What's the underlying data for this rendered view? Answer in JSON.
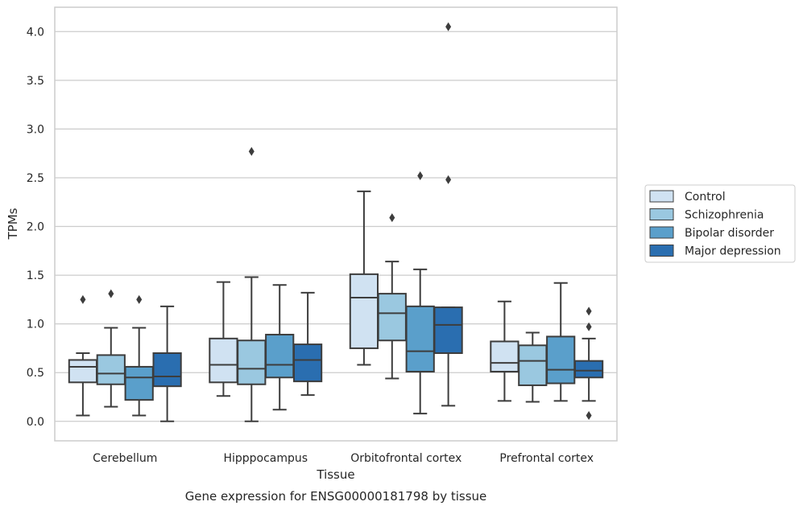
{
  "chart_data": {
    "type": "box",
    "title": "",
    "caption": "Gene expression for ENSG00000181798 by tissue",
    "xlabel": "Tissue",
    "ylabel": "TPMs",
    "ylim": [
      -0.2,
      4.25
    ],
    "yticks": [
      "0.0",
      "0.5",
      "1.0",
      "1.5",
      "2.0",
      "2.5",
      "3.0",
      "3.5",
      "4.0"
    ],
    "grid": "horizontal",
    "legend_position": "right",
    "categories": [
      "Cerebellum",
      "Hipppocampus",
      "Orbitofrontal cortex",
      "Prefrontal cortex"
    ],
    "series": [
      {
        "name": "Control",
        "color": "#d0e2f2",
        "boxes": [
          {
            "whislo": 0.06,
            "q1": 0.4,
            "med": 0.56,
            "q3": 0.63,
            "whishi": 0.7,
            "fliers": [
              1.25
            ]
          },
          {
            "whislo": 0.26,
            "q1": 0.4,
            "med": 0.58,
            "q3": 0.85,
            "whishi": 1.43,
            "fliers": []
          },
          {
            "whislo": 0.58,
            "q1": 0.75,
            "med": 1.27,
            "q3": 1.51,
            "whishi": 2.36,
            "fliers": []
          },
          {
            "whislo": 0.21,
            "q1": 0.51,
            "med": 0.6,
            "q3": 0.82,
            "whishi": 1.23,
            "fliers": []
          }
        ]
      },
      {
        "name": "Schizophrenia",
        "color": "#9ac8e0",
        "boxes": [
          {
            "whislo": 0.15,
            "q1": 0.38,
            "med": 0.49,
            "q3": 0.68,
            "whishi": 0.96,
            "fliers": [
              1.31
            ]
          },
          {
            "whislo": 0.0,
            "q1": 0.38,
            "med": 0.54,
            "q3": 0.83,
            "whishi": 1.48,
            "fliers": [
              2.77
            ]
          },
          {
            "whislo": 0.44,
            "q1": 0.83,
            "med": 1.11,
            "q3": 1.31,
            "whishi": 1.64,
            "fliers": [
              2.09
            ]
          },
          {
            "whislo": 0.2,
            "q1": 0.37,
            "med": 0.62,
            "q3": 0.78,
            "whishi": 0.91,
            "fliers": []
          }
        ]
      },
      {
        "name": "Bipolar disorder",
        "color": "#5a9fcb",
        "boxes": [
          {
            "whislo": 0.06,
            "q1": 0.22,
            "med": 0.45,
            "q3": 0.56,
            "whishi": 0.96,
            "fliers": [
              1.25
            ]
          },
          {
            "whislo": 0.12,
            "q1": 0.45,
            "med": 0.58,
            "q3": 0.89,
            "whishi": 1.4,
            "fliers": []
          },
          {
            "whislo": 0.08,
            "q1": 0.51,
            "med": 0.72,
            "q3": 1.18,
            "whishi": 1.56,
            "fliers": [
              2.52
            ]
          },
          {
            "whislo": 0.21,
            "q1": 0.39,
            "med": 0.53,
            "q3": 0.87,
            "whishi": 1.42,
            "fliers": []
          }
        ]
      },
      {
        "name": "Major depression",
        "color": "#2a6eb0",
        "boxes": [
          {
            "whislo": 0.0,
            "q1": 0.36,
            "med": 0.46,
            "q3": 0.7,
            "whishi": 1.18,
            "fliers": []
          },
          {
            "whislo": 0.27,
            "q1": 0.41,
            "med": 0.63,
            "q3": 0.79,
            "whishi": 1.32,
            "fliers": []
          },
          {
            "whislo": 0.16,
            "q1": 0.7,
            "med": 0.99,
            "q3": 1.17,
            "whishi": 1.17,
            "fliers": [
              2.48,
              4.05
            ]
          },
          {
            "whislo": 0.21,
            "q1": 0.45,
            "med": 0.52,
            "q3": 0.62,
            "whishi": 0.85,
            "fliers": [
              1.13,
              0.97,
              0.06
            ]
          }
        ]
      }
    ]
  }
}
